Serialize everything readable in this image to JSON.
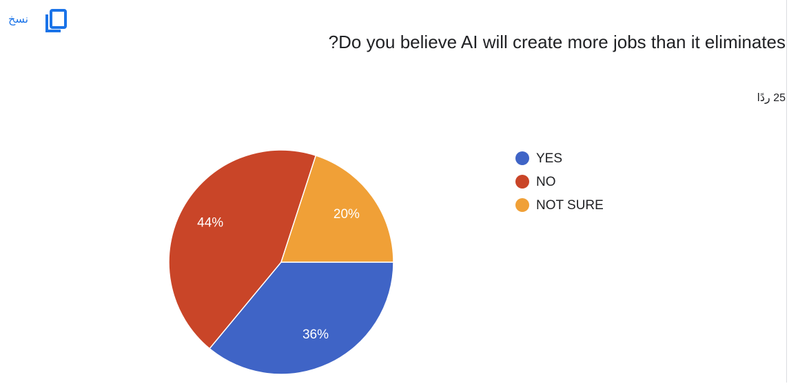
{
  "toolbar": {
    "copy": "نسخ"
  },
  "chart_data": {
    "type": "pie",
    "title": "?Do you believe AI will create more jobs than it eliminates",
    "subtitle": "25 ردًا",
    "categories": [
      "YES",
      "NO",
      "NOT SURE"
    ],
    "values": [
      36,
      44,
      20
    ],
    "value_labels": [
      "36%",
      "44%",
      "20%"
    ],
    "colors": [
      "#3f64c6",
      "#c94528",
      "#f0a037"
    ],
    "legend": "right"
  }
}
